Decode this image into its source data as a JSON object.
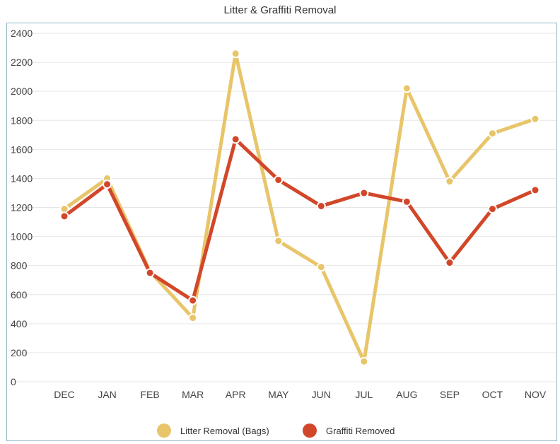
{
  "chart_data": {
    "type": "line",
    "title": "Litter & Graffiti Removal",
    "xlabel": "",
    "ylabel": "",
    "categories": [
      "DEC",
      "JAN",
      "FEB",
      "MAR",
      "APR",
      "MAY",
      "JUN",
      "JUL",
      "AUG",
      "SEP",
      "OCT",
      "NOV"
    ],
    "ylim": [
      0,
      2400
    ],
    "yticks": [
      0,
      200,
      400,
      600,
      800,
      1000,
      1200,
      1400,
      1600,
      1800,
      2000,
      2200,
      2400
    ],
    "grid": true,
    "legend_position": "bottom",
    "series": [
      {
        "name": "Litter Removal (Bags)",
        "color": "#e8c56a",
        "values": [
          1190,
          1400,
          760,
          440,
          2260,
          970,
          790,
          140,
          2020,
          1380,
          1710,
          1810
        ]
      },
      {
        "name": "Graffiti Removed",
        "color": "#d2472a",
        "values": [
          1140,
          1360,
          750,
          560,
          1670,
          1390,
          1210,
          1300,
          1240,
          820,
          1190,
          1320
        ]
      }
    ]
  }
}
